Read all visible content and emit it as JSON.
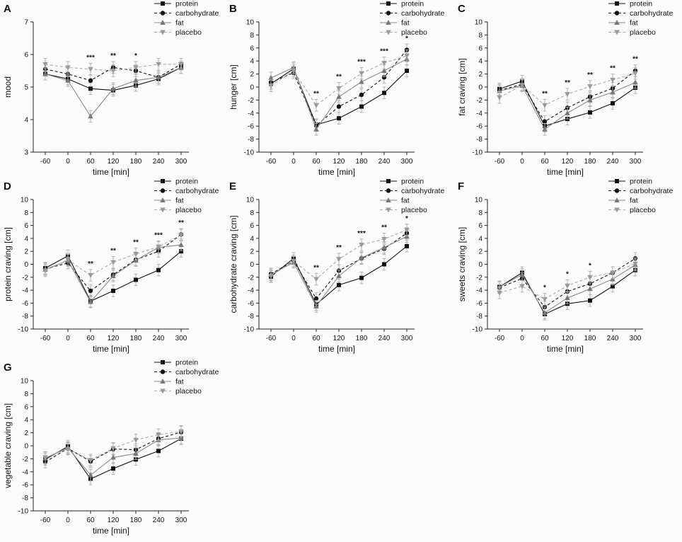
{
  "x": [
    -60,
    0,
    60,
    120,
    180,
    240,
    300
  ],
  "xlabel": "time [min]",
  "legend": [
    "protein",
    "carbohydrate",
    "fat",
    "placebo"
  ],
  "series_colors": {
    "protein": "#111111",
    "carbohydrate": "#111111",
    "fat": "#777777",
    "placebo": "#9a9a9a"
  },
  "chart_data": [
    {
      "type": "line",
      "panel": "A",
      "ylabel": "mood",
      "ylim": [
        3,
        7
      ],
      "yticks": [
        3,
        4,
        5,
        6,
        7
      ],
      "x": [
        -60,
        0,
        60,
        120,
        180,
        240,
        300
      ],
      "series": [
        {
          "name": "protein",
          "values": [
            5.4,
            5.25,
            4.95,
            4.9,
            5.05,
            5.25,
            5.6
          ]
        },
        {
          "name": "carbohydrate",
          "values": [
            5.55,
            5.4,
            5.2,
            5.6,
            5.5,
            5.3,
            5.7
          ]
        },
        {
          "name": "fat",
          "values": [
            5.4,
            5.2,
            4.1,
            4.95,
            5.2,
            5.3,
            5.6
          ]
        },
        {
          "name": "placebo",
          "values": [
            5.7,
            5.6,
            5.55,
            5.5,
            5.6,
            5.7,
            5.7
          ]
        }
      ],
      "significance": [
        "",
        "",
        "***",
        "**",
        "*",
        "",
        ""
      ]
    },
    {
      "type": "line",
      "panel": "B",
      "ylabel": "hunger [cm]",
      "ylim": [
        -10,
        10
      ],
      "yticks": [
        -10,
        -8,
        -6,
        -4,
        -2,
        0,
        2,
        4,
        6,
        8,
        10
      ],
      "x": [
        -60,
        0,
        60,
        120,
        180,
        240,
        300
      ],
      "series": [
        {
          "name": "protein",
          "values": [
            0.5,
            2.8,
            -5.8,
            -4.8,
            -3.0,
            -0.9,
            2.5
          ]
        },
        {
          "name": "carbohydrate",
          "values": [
            0.7,
            2.2,
            -5.9,
            -3.0,
            -1.2,
            1.5,
            5.7
          ]
        },
        {
          "name": "fat",
          "values": [
            1.4,
            3.0,
            -6.5,
            -1.5,
            0.8,
            2.5,
            4.3
          ]
        },
        {
          "name": "placebo",
          "values": [
            0.2,
            2.5,
            -2.8,
            -0.2,
            2.1,
            3.7,
            4.8
          ]
        }
      ],
      "significance": [
        "",
        "",
        "**",
        "**",
        "***",
        "***",
        "*"
      ]
    },
    {
      "type": "line",
      "panel": "C",
      "ylabel": "fat craving [cm]",
      "ylim": [
        -10,
        10
      ],
      "yticks": [
        -10,
        -8,
        -6,
        -4,
        -2,
        0,
        2,
        4,
        6,
        8,
        10
      ],
      "x": [
        -60,
        0,
        60,
        120,
        180,
        240,
        300
      ],
      "series": [
        {
          "name": "protein",
          "values": [
            -0.3,
            0.9,
            -6.0,
            -4.9,
            -3.9,
            -2.5,
            -0.1
          ]
        },
        {
          "name": "carbohydrate",
          "values": [
            -0.5,
            0.4,
            -5.3,
            -3.2,
            -1.5,
            -0.2,
            2.5
          ]
        },
        {
          "name": "fat",
          "values": [
            -0.6,
            0.2,
            -6.5,
            -4.0,
            -2.0,
            -0.8,
            0.7
          ]
        },
        {
          "name": "placebo",
          "values": [
            -1.6,
            0.3,
            -2.8,
            -1.1,
            0.1,
            1.1,
            2.1
          ]
        }
      ],
      "significance": [
        "",
        "",
        "**",
        "**",
        "**",
        "**",
        "**"
      ]
    },
    {
      "type": "line",
      "panel": "D",
      "ylabel": "protein craving [cm]",
      "ylim": [
        -10,
        10
      ],
      "yticks": [
        -10,
        -8,
        -6,
        -4,
        -2,
        0,
        2,
        4,
        6,
        8,
        10
      ],
      "x": [
        -60,
        0,
        60,
        120,
        180,
        240,
        300
      ],
      "series": [
        {
          "name": "protein",
          "values": [
            -0.6,
            1.3,
            -5.7,
            -4.1,
            -2.4,
            -0.9,
            2.0
          ]
        },
        {
          "name": "carbohydrate",
          "values": [
            -0.7,
            0.2,
            -4.1,
            -1.6,
            0.7,
            2.0,
            4.6
          ]
        },
        {
          "name": "fat",
          "values": [
            -0.8,
            0.6,
            -5.8,
            -1.8,
            0.6,
            2.6,
            3.0
          ]
        },
        {
          "name": "placebo",
          "values": [
            -1.0,
            0.7,
            -1.7,
            0.3,
            1.6,
            2.7,
            4.5
          ]
        }
      ],
      "significance": [
        "",
        "",
        "**",
        "**",
        "**",
        "***",
        "**"
      ]
    },
    {
      "type": "line",
      "panel": "E",
      "ylabel": "carbohydrate craving [cm]",
      "ylim": [
        -10,
        10
      ],
      "yticks": [
        -10,
        -8,
        -6,
        -4,
        -2,
        0,
        2,
        4,
        6,
        8,
        10
      ],
      "x": [
        -60,
        0,
        60,
        120,
        180,
        240,
        300
      ],
      "series": [
        {
          "name": "protein",
          "values": [
            -1.9,
            0.9,
            -6.2,
            -3.2,
            -2.1,
            0.0,
            2.8
          ]
        },
        {
          "name": "carbohydrate",
          "values": [
            -1.5,
            0.5,
            -5.3,
            -1.0,
            0.9,
            2.4,
            4.8
          ]
        },
        {
          "name": "fat",
          "values": [
            -1.6,
            0.3,
            -6.5,
            -1.8,
            1.0,
            2.6,
            4.3
          ]
        },
        {
          "name": "placebo",
          "values": [
            -1.8,
            0.5,
            -2.3,
            0.8,
            3.0,
            3.9,
            5.3
          ]
        }
      ],
      "significance": [
        "",
        "",
        "**",
        "**",
        "***",
        "**",
        "*"
      ]
    },
    {
      "type": "line",
      "panel": "F",
      "ylabel": "sweets craving [cm]",
      "ylim": [
        -10,
        10
      ],
      "yticks": [
        -10,
        -8,
        -6,
        -4,
        -2,
        0,
        2,
        4,
        6,
        8,
        10
      ],
      "x": [
        -60,
        0,
        60,
        120,
        180,
        240,
        300
      ],
      "series": [
        {
          "name": "protein",
          "values": [
            -3.5,
            -1.3,
            -7.7,
            -6.1,
            -5.6,
            -3.4,
            -0.9
          ]
        },
        {
          "name": "carbohydrate",
          "values": [
            -3.6,
            -2.2,
            -6.6,
            -4.2,
            -3.0,
            -1.3,
            0.9
          ]
        },
        {
          "name": "fat",
          "values": [
            -3.5,
            -1.6,
            -7.5,
            -5.2,
            -3.8,
            -2.3,
            -0.1
          ]
        },
        {
          "name": "placebo",
          "values": [
            -4.4,
            -3.4,
            -5.4,
            -3.3,
            -2.0,
            -1.3,
            0.1
          ]
        }
      ],
      "significance": [
        "",
        "",
        "*",
        "*",
        "*",
        "",
        ""
      ]
    },
    {
      "type": "line",
      "panel": "G",
      "ylabel": "vegetable craving [cm]",
      "ylim": [
        -10,
        10
      ],
      "yticks": [
        -10,
        -8,
        -6,
        -4,
        -2,
        0,
        2,
        4,
        6,
        8,
        10
      ],
      "x": [
        -60,
        0,
        60,
        120,
        180,
        240,
        300
      ],
      "series": [
        {
          "name": "protein",
          "values": [
            -2.1,
            -0.1,
            -5.1,
            -3.5,
            -2.1,
            -0.8,
            1.1
          ]
        },
        {
          "name": "carbohydrate",
          "values": [
            -2.5,
            -0.4,
            -2.4,
            -0.5,
            -0.6,
            1.1,
            2.1
          ]
        },
        {
          "name": "fat",
          "values": [
            -1.9,
            -0.3,
            -4.5,
            -1.8,
            -1.2,
            0.9,
            1.2
          ]
        },
        {
          "name": "placebo",
          "values": [
            -1.8,
            -0.5,
            -2.2,
            -0.4,
            0.9,
            1.7,
            2.2
          ]
        }
      ],
      "significance": [
        "",
        "",
        "",
        "",
        "",
        "",
        ""
      ]
    }
  ]
}
